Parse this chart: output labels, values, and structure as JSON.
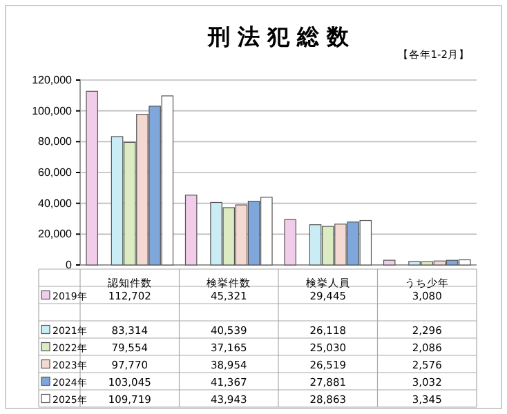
{
  "chart_data": {
    "type": "bar",
    "title": "刑 法 犯 総 数",
    "subtitle": "【各年1-2月】",
    "categories": [
      "認知件数",
      "検挙件数",
      "検挙人員",
      "うち少年"
    ],
    "ylim": [
      0,
      120000
    ],
    "yticks": [
      {
        "value": 0,
        "label": "0"
      },
      {
        "value": 20000,
        "label": "20,000"
      },
      {
        "value": 40000,
        "label": "40,000"
      },
      {
        "value": 60000,
        "label": "60,000"
      },
      {
        "value": 80000,
        "label": "80,000"
      },
      {
        "value": 100000,
        "label": "100,000"
      },
      {
        "value": 120000,
        "label": "120,000"
      }
    ],
    "grid": "y",
    "legend": "bottom",
    "series": [
      {
        "name": "2019年",
        "color": "#f2cdea",
        "values": [
          112702,
          45321,
          29445,
          3080
        ],
        "value_labels": [
          "112,702",
          "45,321",
          "29,445",
          "3,080"
        ]
      },
      {
        "name": "2021年",
        "color": "#c9ecf5",
        "values": [
          83314,
          40539,
          26118,
          2296
        ],
        "value_labels": [
          "83,314",
          "40,539",
          "26,118",
          "2,296"
        ]
      },
      {
        "name": "2022年",
        "color": "#dcebc2",
        "values": [
          79554,
          37165,
          25030,
          2086
        ],
        "value_labels": [
          "79,554",
          "37,165",
          "25,030",
          "2,086"
        ]
      },
      {
        "name": "2023年",
        "color": "#f3d9d2",
        "values": [
          97770,
          38954,
          26519,
          2576
        ],
        "value_labels": [
          "97,770",
          "38,954",
          "26,519",
          "2,576"
        ]
      },
      {
        "name": "2024年",
        "color": "#7fa7dc",
        "values": [
          103045,
          41367,
          27881,
          3032
        ],
        "value_labels": [
          "103,045",
          "41,367",
          "27,881",
          "3,032"
        ]
      },
      {
        "name": "2025年",
        "color": "#ffffff",
        "values": [
          109719,
          43943,
          28863,
          3345
        ],
        "value_labels": [
          "109,719",
          "43,943",
          "28,863",
          "3,345"
        ]
      }
    ]
  }
}
